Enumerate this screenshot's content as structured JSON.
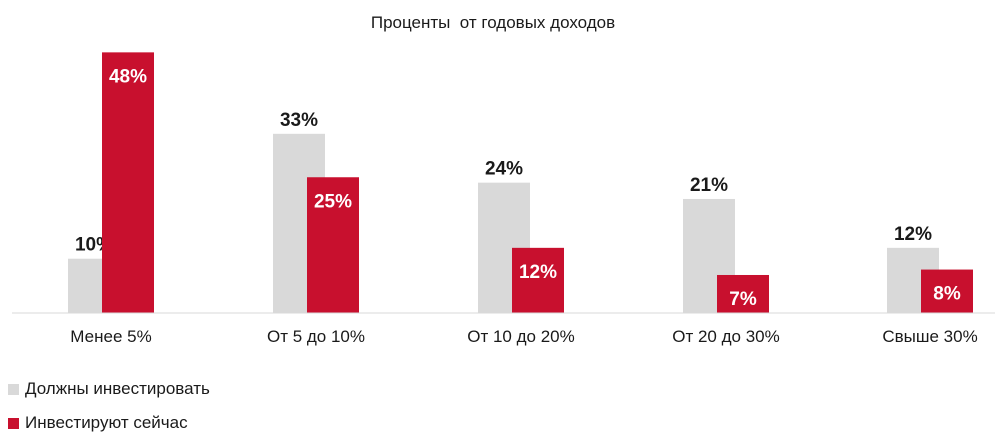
{
  "chart_data": {
    "type": "bar",
    "title": "Проценты  от годовых доходов",
    "xlabel": "",
    "ylabel": "",
    "ylim": [
      0,
      50
    ],
    "grid": false,
    "legend_position": "bottom-left",
    "categories": [
      "Менее 5%",
      "От 5 до 10%",
      "От 10 до 20%",
      "От 20 до 30%",
      "Свыше 30%"
    ],
    "series": [
      {
        "name": "Должны инвестировать",
        "color": "#d9d9d9",
        "label_color": "#1a1a1a",
        "values": [
          10,
          33,
          24,
          21,
          12
        ],
        "labels": [
          "10%",
          "33%",
          "24%",
          "21%",
          "12%"
        ]
      },
      {
        "name": "Инвестируют сейчас",
        "color": "#c8102e",
        "label_color": "#ffffff",
        "values": [
          48,
          25,
          12,
          7,
          8
        ],
        "labels": [
          "48%",
          "25%",
          "12%",
          "7%",
          "8%"
        ]
      }
    ]
  }
}
